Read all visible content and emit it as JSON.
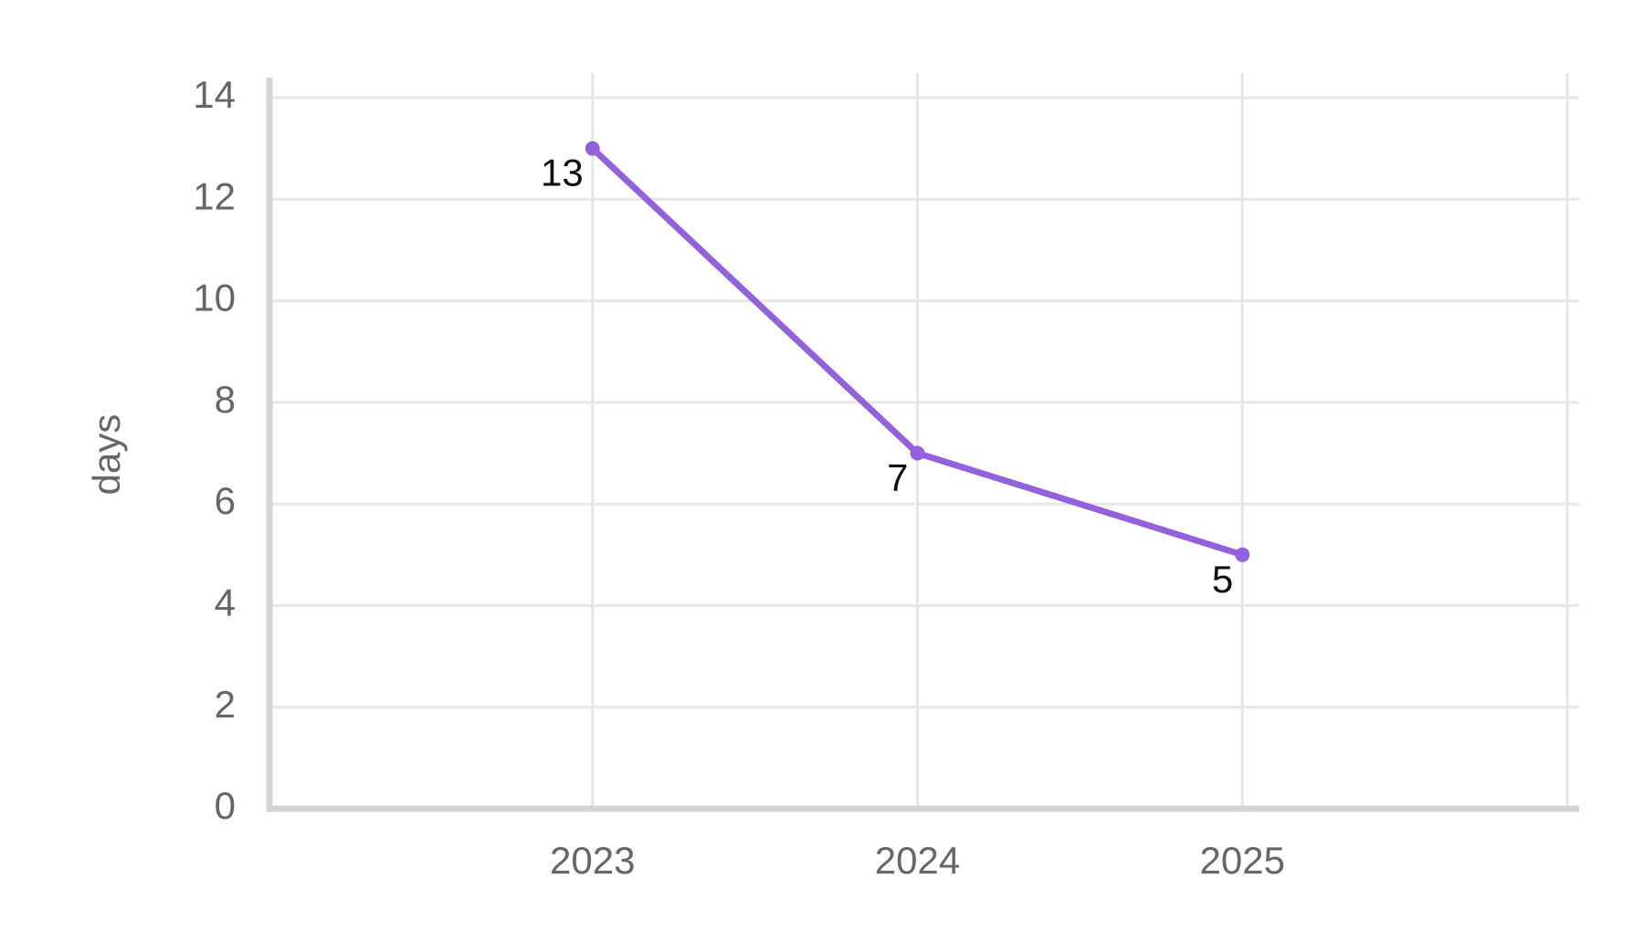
{
  "chart_data": {
    "type": "line",
    "y_label": "days",
    "x": [
      2023,
      2024,
      2025
    ],
    "series": [
      {
        "color": "#9461dc",
        "values": [
          13,
          7,
          5
        ]
      }
    ],
    "xlim": [
      2022,
      2026
    ],
    "xticks": [
      2023,
      2024,
      2025
    ],
    "ylim": [
      0,
      14
    ],
    "yticks": [
      0,
      2,
      4,
      6,
      8,
      10,
      12,
      14
    ],
    "grid": true
  }
}
